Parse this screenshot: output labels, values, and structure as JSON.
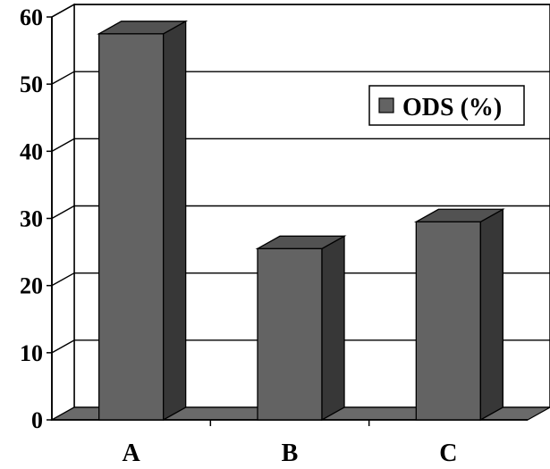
{
  "chart_data": {
    "type": "bar",
    "categories": [
      "A",
      "B",
      "C"
    ],
    "series": [
      {
        "name": "ODS (%)",
        "values": [
          57.5,
          25.5,
          29.5
        ]
      }
    ],
    "title": "",
    "xlabel": "",
    "ylabel": "",
    "ylim": [
      0,
      60
    ],
    "yticks": [
      "0",
      "10",
      "20",
      "30",
      "40",
      "50",
      "60"
    ],
    "grid": true,
    "legend": "top-right",
    "style": "3d",
    "colors": {
      "bar_front": "#636363",
      "bar_top": "#525252",
      "bar_side": "#373737",
      "floor": "#6a6a6a"
    }
  }
}
